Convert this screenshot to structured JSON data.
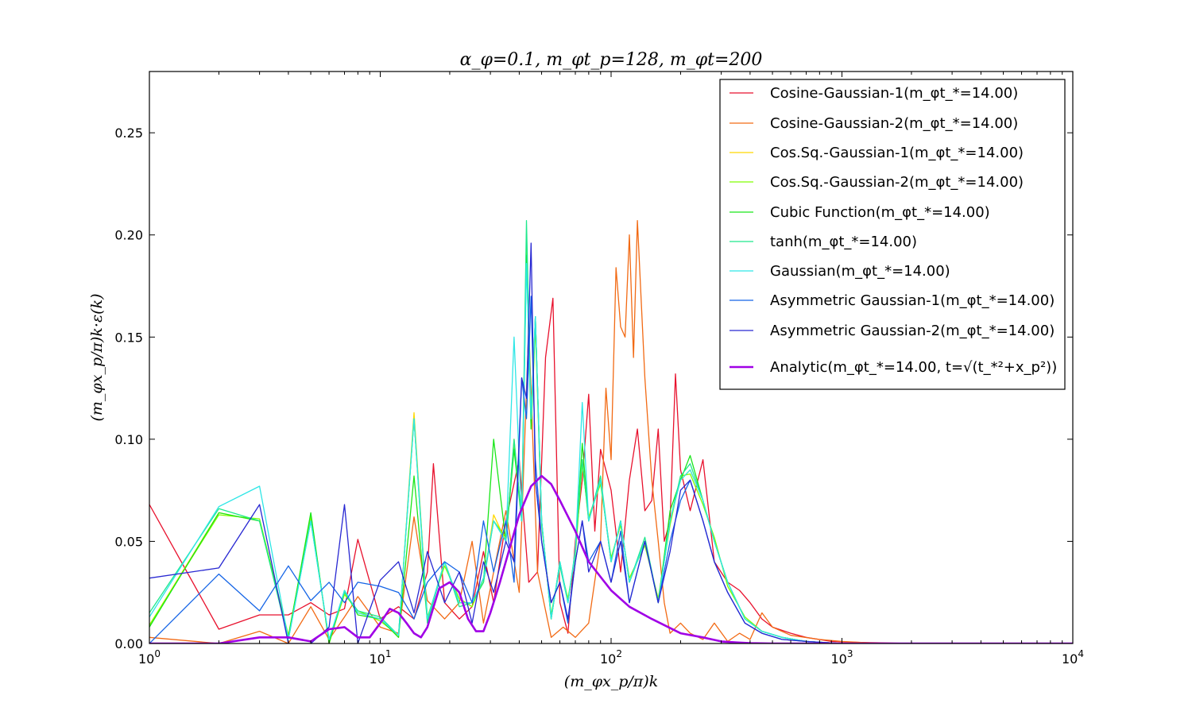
{
  "chart_data": {
    "type": "line",
    "title": "α_φ=0.1, m_φt_p=128, m_φt=200",
    "xlabel": "(m_φx_p/π)k",
    "ylabel": "(m_φx_p/π)k·ε(k)",
    "xscale": "log",
    "xlim": [
      1,
      10000
    ],
    "ylim": [
      0,
      0.28
    ],
    "x_ticks": [
      {
        "value": 1,
        "base": "10",
        "exp": "0"
      },
      {
        "value": 10,
        "base": "10",
        "exp": "1"
      },
      {
        "value": 100,
        "base": "10",
        "exp": "2"
      },
      {
        "value": 1000,
        "base": "10",
        "exp": "3"
      },
      {
        "value": 10000,
        "base": "10",
        "exp": "4"
      }
    ],
    "y_ticks": [
      {
        "value": 0,
        "label": "0.00"
      },
      {
        "value": 0.05,
        "label": "0.05"
      },
      {
        "value": 0.1,
        "label": "0.10"
      },
      {
        "value": 0.15,
        "label": "0.15"
      },
      {
        "value": 0.2,
        "label": "0.20"
      },
      {
        "value": 0.25,
        "label": "0.25"
      }
    ],
    "grid": false,
    "legend_position": "top-right",
    "series": [
      {
        "name": "Cosine-Gaussian-1(m_φt_*=14.00)",
        "color": "#e8112d",
        "width": 1.3,
        "x": [
          1,
          2,
          3,
          4,
          5,
          6,
          7,
          8,
          10,
          12,
          14,
          16,
          17,
          19,
          22,
          25,
          28,
          31,
          35,
          40,
          44,
          48,
          52,
          56,
          60,
          65,
          70,
          75,
          80,
          85,
          90,
          100,
          110,
          120,
          130,
          140,
          150,
          160,
          170,
          180,
          190,
          200,
          220,
          250,
          280,
          320,
          360,
          400,
          450,
          500,
          600,
          700,
          900,
          1200,
          2000,
          10000
        ],
        "y": [
          0.068,
          0.007,
          0.014,
          0.014,
          0.02,
          0.014,
          0.017,
          0.051,
          0.012,
          0.018,
          0.012,
          0.035,
          0.088,
          0.02,
          0.012,
          0.018,
          0.045,
          0.02,
          0.06,
          0.09,
          0.03,
          0.035,
          0.14,
          0.169,
          0.02,
          0.005,
          0.05,
          0.08,
          0.122,
          0.055,
          0.095,
          0.075,
          0.035,
          0.08,
          0.105,
          0.065,
          0.07,
          0.105,
          0.05,
          0.06,
          0.132,
          0.085,
          0.065,
          0.09,
          0.04,
          0.03,
          0.026,
          0.02,
          0.012,
          0.008,
          0.005,
          0.003,
          0.001,
          0.0005,
          0,
          0
        ]
      },
      {
        "name": "Cosine-Gaussian-2(m_φt_*=14.00)",
        "color": "#f26a14",
        "width": 1.3,
        "x": [
          1,
          2,
          3,
          4,
          5,
          6,
          7,
          8,
          10,
          12,
          14,
          16,
          19,
          22,
          25,
          28,
          31,
          35,
          40,
          44,
          48,
          55,
          62,
          70,
          80,
          90,
          95,
          100,
          105,
          110,
          115,
          120,
          125,
          130,
          140,
          150,
          160,
          170,
          180,
          200,
          220,
          250,
          280,
          320,
          360,
          400,
          450,
          500,
          600,
          800,
          1000,
          1500,
          10000
        ],
        "y": [
          0.003,
          0.0,
          0.006,
          0.0,
          0.018,
          0.002,
          0.013,
          0.023,
          0.008,
          0.005,
          0.062,
          0.021,
          0.012,
          0.02,
          0.05,
          0.01,
          0.035,
          0.065,
          0.025,
          0.155,
          0.035,
          0.003,
          0.008,
          0.003,
          0.01,
          0.05,
          0.125,
          0.09,
          0.184,
          0.155,
          0.15,
          0.2,
          0.14,
          0.207,
          0.13,
          0.08,
          0.05,
          0.02,
          0.005,
          0.01,
          0.005,
          0.002,
          0.01,
          0.001,
          0.005,
          0.002,
          0.015,
          0.008,
          0.004,
          0.002,
          0.001,
          0,
          0
        ]
      },
      {
        "name": "Cos.Sq.-Gaussian-1(m_φt_*=14.00)",
        "color": "#ffd700",
        "width": 1.3,
        "x": [
          1,
          2,
          3,
          4,
          5,
          6,
          7,
          8,
          10,
          12,
          14,
          16,
          19,
          22,
          25,
          28,
          31,
          35,
          38,
          41,
          43,
          45,
          47,
          50,
          55,
          60,
          65,
          70,
          75,
          80,
          90,
          100,
          110,
          120,
          140,
          160,
          180,
          200,
          220,
          250,
          280,
          320,
          380,
          450,
          550,
          700,
          1000,
          10000
        ],
        "y": [
          0.009,
          0.064,
          0.06,
          0.003,
          0.063,
          0.0,
          0.025,
          0.015,
          0.012,
          0.003,
          0.113,
          0.012,
          0.04,
          0.02,
          0.02,
          0.03,
          0.063,
          0.05,
          0.1,
          0.06,
          0.2,
          0.11,
          0.16,
          0.06,
          0.012,
          0.04,
          0.02,
          0.045,
          0.09,
          0.06,
          0.08,
          0.04,
          0.06,
          0.03,
          0.05,
          0.02,
          0.06,
          0.08,
          0.085,
          0.07,
          0.05,
          0.03,
          0.012,
          0.006,
          0.003,
          0.001,
          0,
          0
        ]
      },
      {
        "name": "Cos.Sq.-Gaussian-2(m_φt_*=14.00)",
        "color": "#80ff00",
        "width": 1.3,
        "x": [
          1,
          2,
          3,
          4,
          5,
          6,
          7,
          8,
          10,
          12,
          14,
          16,
          19,
          22,
          25,
          28,
          31,
          35,
          38,
          41,
          43,
          45,
          47,
          50,
          55,
          60,
          65,
          70,
          75,
          80,
          90,
          100,
          110,
          120,
          140,
          160,
          180,
          200,
          220,
          250,
          280,
          320,
          380,
          450,
          550,
          700,
          1000,
          10000
        ],
        "y": [
          0.009,
          0.063,
          0.061,
          0.004,
          0.062,
          0.001,
          0.024,
          0.016,
          0.011,
          0.004,
          0.11,
          0.013,
          0.038,
          0.022,
          0.018,
          0.032,
          0.06,
          0.052,
          0.098,
          0.062,
          0.195,
          0.105,
          0.155,
          0.058,
          0.014,
          0.038,
          0.022,
          0.043,
          0.088,
          0.062,
          0.078,
          0.042,
          0.058,
          0.032,
          0.048,
          0.022,
          0.058,
          0.082,
          0.083,
          0.068,
          0.052,
          0.028,
          0.013,
          0.006,
          0.003,
          0.001,
          0,
          0
        ]
      },
      {
        "name": "Cubic Function(m_φt_*=14.00)",
        "color": "#19e619",
        "width": 1.3,
        "x": [
          1,
          2,
          3,
          4,
          5,
          6,
          7,
          8,
          10,
          12,
          14,
          16,
          19,
          22,
          25,
          28,
          31,
          35,
          38,
          41,
          43,
          45,
          47,
          50,
          55,
          60,
          65,
          70,
          75,
          80,
          90,
          100,
          110,
          120,
          140,
          160,
          180,
          200,
          220,
          250,
          280,
          320,
          380,
          450,
          550,
          700,
          1000,
          10000
        ],
        "y": [
          0.008,
          0.064,
          0.06,
          0.003,
          0.064,
          0.0,
          0.026,
          0.014,
          0.012,
          0.003,
          0.082,
          0.011,
          0.04,
          0.02,
          0.02,
          0.03,
          0.1,
          0.05,
          0.095,
          0.06,
          0.19,
          0.105,
          0.16,
          0.06,
          0.012,
          0.04,
          0.02,
          0.045,
          0.098,
          0.06,
          0.08,
          0.04,
          0.06,
          0.03,
          0.05,
          0.02,
          0.065,
          0.08,
          0.092,
          0.07,
          0.05,
          0.03,
          0.012,
          0.006,
          0.003,
          0.001,
          0,
          0
        ]
      },
      {
        "name": "tanh(m_φt_*=14.00)",
        "color": "#1ee88c",
        "width": 1.3,
        "x": [
          1,
          2,
          3,
          4,
          5,
          6,
          7,
          8,
          10,
          12,
          14,
          16,
          19,
          22,
          25,
          28,
          31,
          35,
          38,
          41,
          43,
          45,
          47,
          50,
          55,
          60,
          65,
          70,
          75,
          80,
          90,
          100,
          110,
          120,
          140,
          160,
          180,
          200,
          220,
          250,
          280,
          320,
          380,
          450,
          550,
          700,
          1000,
          10000
        ],
        "y": [
          0.015,
          0.066,
          0.06,
          0.002,
          0.06,
          0.002,
          0.025,
          0.016,
          0.013,
          0.004,
          0.11,
          0.01,
          0.04,
          0.018,
          0.02,
          0.03,
          0.06,
          0.05,
          0.1,
          0.06,
          0.207,
          0.11,
          0.16,
          0.06,
          0.013,
          0.038,
          0.02,
          0.046,
          0.09,
          0.06,
          0.082,
          0.04,
          0.06,
          0.03,
          0.052,
          0.02,
          0.06,
          0.082,
          0.088,
          0.07,
          0.05,
          0.03,
          0.012,
          0.006,
          0.003,
          0.001,
          0,
          0
        ]
      },
      {
        "name": "Gaussian(m_φt_*=14.00)",
        "color": "#2ee6e6",
        "width": 1.3,
        "x": [
          1,
          2,
          3,
          4,
          5,
          6,
          7,
          8,
          10,
          12,
          14,
          16,
          19,
          22,
          25,
          28,
          31,
          35,
          38,
          41,
          43,
          45,
          47,
          50,
          55,
          60,
          65,
          70,
          75,
          80,
          90,
          100,
          110,
          120,
          140,
          160,
          180,
          200,
          220,
          250,
          280,
          320,
          380,
          450,
          550,
          700,
          1000,
          10000
        ],
        "y": [
          0.013,
          0.067,
          0.077,
          0.002,
          0.06,
          0.002,
          0.026,
          0.015,
          0.012,
          0.004,
          0.11,
          0.012,
          0.04,
          0.02,
          0.02,
          0.032,
          0.06,
          0.05,
          0.15,
          0.06,
          0.186,
          0.11,
          0.16,
          0.06,
          0.012,
          0.04,
          0.02,
          0.045,
          0.118,
          0.06,
          0.08,
          0.04,
          0.06,
          0.03,
          0.05,
          0.02,
          0.06,
          0.08,
          0.085,
          0.07,
          0.05,
          0.03,
          0.012,
          0.006,
          0.003,
          0.001,
          0,
          0
        ]
      },
      {
        "name": "Asymmetric Gaussian-1(m_φt_*=14.00)",
        "color": "#1464e6",
        "width": 1.3,
        "x": [
          1,
          2,
          3,
          4,
          5,
          6,
          7,
          8,
          10,
          12,
          14,
          16,
          19,
          22,
          25,
          28,
          31,
          35,
          38,
          41,
          43,
          45,
          47,
          50,
          55,
          60,
          65,
          70,
          75,
          80,
          90,
          100,
          110,
          120,
          140,
          160,
          180,
          200,
          220,
          250,
          280,
          320,
          380,
          450,
          550,
          700,
          1000,
          10000
        ],
        "y": [
          0.0,
          0.034,
          0.016,
          0.038,
          0.021,
          0.03,
          0.02,
          0.03,
          0.028,
          0.025,
          0.012,
          0.03,
          0.04,
          0.035,
          0.02,
          0.06,
          0.035,
          0.06,
          0.03,
          0.13,
          0.11,
          0.17,
          0.09,
          0.05,
          0.02,
          0.03,
          0.01,
          0.04,
          0.06,
          0.04,
          0.05,
          0.03,
          0.055,
          0.02,
          0.05,
          0.02,
          0.05,
          0.07,
          0.08,
          0.06,
          0.04,
          0.025,
          0.01,
          0.005,
          0.002,
          0.001,
          0,
          0
        ]
      },
      {
        "name": "Asymmetric Gaussian-2(m_φt_*=14.00)",
        "color": "#2828d2",
        "width": 1.3,
        "x": [
          1,
          2,
          3,
          4,
          5,
          6,
          7,
          8,
          10,
          12,
          14,
          16,
          19,
          22,
          25,
          28,
          31,
          35,
          38,
          41,
          43,
          45,
          47,
          50,
          55,
          60,
          65,
          70,
          75,
          80,
          90,
          100,
          110,
          120,
          140,
          160,
          180,
          200,
          220,
          250,
          280,
          320,
          380,
          450,
          550,
          700,
          1000,
          10000
        ],
        "y": [
          0.032,
          0.037,
          0.068,
          0.0,
          0.0,
          0.008,
          0.068,
          0.0,
          0.031,
          0.04,
          0.015,
          0.045,
          0.02,
          0.035,
          0.01,
          0.04,
          0.025,
          0.05,
          0.04,
          0.13,
          0.12,
          0.196,
          0.08,
          0.05,
          0.02,
          0.03,
          0.012,
          0.04,
          0.06,
          0.035,
          0.05,
          0.03,
          0.05,
          0.02,
          0.05,
          0.02,
          0.045,
          0.075,
          0.08,
          0.06,
          0.04,
          0.025,
          0.01,
          0.005,
          0.002,
          0.001,
          0,
          0
        ]
      },
      {
        "name": "Analytic(m_φt_*=14.00, t=√(t_*²+x_p²))",
        "color": "#a000e6",
        "width": 2.6,
        "x": [
          1,
          2,
          3,
          4,
          5,
          6,
          7,
          8,
          9,
          10,
          11,
          12,
          13,
          14,
          15,
          16,
          18,
          20,
          22,
          24,
          26,
          28,
          30,
          33,
          36,
          40,
          45,
          50,
          55,
          60,
          70,
          80,
          100,
          120,
          150,
          200,
          250,
          300,
          350,
          400,
          500,
          700,
          1000,
          10000
        ],
        "y": [
          0.0,
          0.0,
          0.003,
          0.003,
          0.001,
          0.007,
          0.008,
          0.003,
          0.003,
          0.01,
          0.017,
          0.015,
          0.01,
          0.005,
          0.003,
          0.008,
          0.027,
          0.03,
          0.025,
          0.012,
          0.006,
          0.006,
          0.015,
          0.03,
          0.045,
          0.063,
          0.077,
          0.082,
          0.078,
          0.07,
          0.055,
          0.04,
          0.026,
          0.018,
          0.012,
          0.005,
          0.003,
          0.001,
          0.0005,
          0.0002,
          0,
          0,
          0,
          0
        ]
      }
    ]
  }
}
